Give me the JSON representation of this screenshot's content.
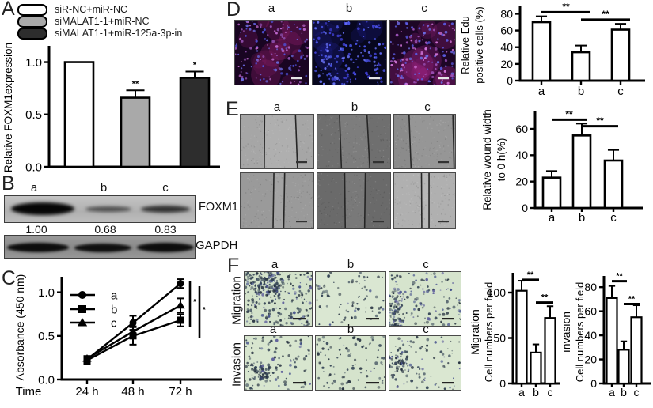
{
  "panels": {
    "A": {
      "letter": "A",
      "legend": [
        {
          "label": "siR-NC+miR-NC",
          "fill": "#ffffff"
        },
        {
          "label": "siMALAT1-1+miR-NC",
          "fill": "#a9a9a9"
        },
        {
          "label": "siMALAT1-1+miR-125a-3p-in",
          "fill": "#2d2d2d"
        }
      ]
    },
    "B": {
      "letter": "B",
      "lane_labels": [
        "a",
        "b",
        "c"
      ],
      "band_values": [
        "1.00",
        "0.68",
        "0.83"
      ],
      "protein_labels": [
        "FOXM1",
        "GAPDH"
      ]
    },
    "C": {
      "letter": "C"
    },
    "D": {
      "letter": "D",
      "column_labels": [
        "a",
        "b",
        "c"
      ]
    },
    "E": {
      "letter": "E",
      "column_labels": [
        "a",
        "b",
        "c"
      ]
    },
    "F": {
      "letter": "F",
      "row_labels": [
        "Migration",
        "Invasion"
      ],
      "column_labels_migration": [
        "a",
        "b",
        "c"
      ],
      "column_labels_invasion": [
        "a",
        "b",
        "c"
      ]
    }
  },
  "chart_data": [
    {
      "id": "A",
      "type": "bar",
      "categories": [
        "siR-NC+miR-NC",
        "siMALAT1-1+miR-NC",
        "siMALAT1-1+miR-125a-3p-in"
      ],
      "values": [
        1.0,
        0.66,
        0.85
      ],
      "errors": [
        0,
        0.07,
        0.06
      ],
      "bar_colors": [
        "#ffffff",
        "#a9a9a9",
        "#2d2d2d"
      ],
      "ylabel": "Relative FOXM1expression",
      "yticks": [
        0,
        0.5,
        1.0
      ],
      "ytick_labels": [
        "0.0",
        "0.5",
        "1.0"
      ],
      "ylim": [
        0,
        1.14
      ],
      "sig_above": [
        "",
        "**",
        "*"
      ],
      "xtick_labels": []
    },
    {
      "id": "C",
      "type": "line",
      "xlabel": "Time",
      "xtick_labels": [
        "24 h",
        "48 h",
        "72 h"
      ],
      "ylabel": "Absorbance (450 nm)",
      "yticks": [
        0,
        0.5,
        1.0
      ],
      "ytick_labels": [
        "0.0",
        "0.5",
        "1.0"
      ],
      "ylim": [
        0,
        1.16
      ],
      "series": [
        {
          "name": "a",
          "marker": "circle",
          "values": [
            0.23,
            0.65,
            1.1
          ],
          "errors": [
            0.03,
            0.08,
            0.05
          ]
        },
        {
          "name": "b",
          "marker": "square",
          "values": [
            0.22,
            0.5,
            0.68
          ],
          "errors": [
            0.04,
            0.1,
            0.07
          ]
        },
        {
          "name": "c",
          "marker": "triangle",
          "values": [
            0.24,
            0.55,
            0.85
          ],
          "errors": [
            0.03,
            0.06,
            0.08
          ]
        }
      ],
      "sig": [
        "*",
        "*"
      ],
      "legend_position": "upper-left"
    },
    {
      "id": "D",
      "type": "bar",
      "categories": [
        "a",
        "b",
        "c"
      ],
      "values": [
        70,
        34,
        61
      ],
      "errors": [
        7,
        8,
        7
      ],
      "bar_colors": [
        "#ffffff",
        "#ffffff",
        "#ffffff"
      ],
      "ylabel_lines": [
        "Relative Edu",
        "positive cells (%)"
      ],
      "yticks": [
        0,
        20,
        40,
        60,
        80
      ],
      "ytick_labels": [
        "0",
        "20",
        "40",
        "60",
        "80"
      ],
      "ylim": [
        0,
        88
      ],
      "sig_pairs": [
        {
          "from": 0,
          "to": 1,
          "level": 82,
          "text": "**"
        },
        {
          "from": 1,
          "to": 2,
          "level": 73,
          "text": "**"
        }
      ]
    },
    {
      "id": "E",
      "type": "bar",
      "categories": [
        "a",
        "b",
        "c"
      ],
      "values": [
        23,
        55,
        36
      ],
      "errors": [
        5,
        9,
        8
      ],
      "bar_colors": [
        "#ffffff",
        "#ffffff",
        "#ffffff"
      ],
      "ylabel_lines": [
        "Relative wound width",
        "to 0 h(%)"
      ],
      "yticks": [
        0,
        20,
        40,
        60
      ],
      "ytick_labels": [
        "0",
        "20",
        "40",
        "60"
      ],
      "ylim": [
        0,
        72
      ],
      "sig_pairs": [
        {
          "from": 0,
          "to": 1,
          "level": 67,
          "text": "**"
        },
        {
          "from": 1,
          "to": 2,
          "level": 62,
          "text": "**"
        }
      ]
    },
    {
      "id": "Fmig",
      "type": "bar",
      "categories": [
        "a",
        "b",
        "c"
      ],
      "values": [
        102,
        34,
        72
      ],
      "errors": [
        11,
        9,
        13
      ],
      "bar_colors": [
        "#ffffff",
        "#ffffff",
        "#ffffff"
      ],
      "ylabel_lines": [
        "Migration",
        "Cell numbers per field"
      ],
      "yticks": [
        0,
        50,
        100
      ],
      "ytick_labels": [
        "0",
        "50",
        "100"
      ],
      "ylim": [
        0,
        120
      ],
      "sig_pairs": [
        {
          "from": 0,
          "to": 1,
          "level": 114,
          "text": "**"
        },
        {
          "from": 1,
          "to": 2,
          "level": 89,
          "text": "**"
        }
      ]
    },
    {
      "id": "Finv",
      "type": "bar",
      "categories": [
        "a",
        "b",
        "c"
      ],
      "values": [
        71,
        28,
        55
      ],
      "errors": [
        10,
        7,
        10
      ],
      "bar_colors": [
        "#ffffff",
        "#ffffff",
        "#ffffff"
      ],
      "ylabel_lines": [
        "Invasion",
        "Cell numbers per field"
      ],
      "yticks": [
        0,
        20,
        40,
        60,
        80
      ],
      "ytick_labels": [
        "0",
        "20",
        "40",
        "60",
        "80"
      ],
      "ylim": [
        0,
        88
      ],
      "sig_pairs": [
        {
          "from": 0,
          "to": 1,
          "level": 85,
          "text": "**"
        },
        {
          "from": 1,
          "to": 2,
          "level": 66,
          "text": "**"
        }
      ]
    }
  ]
}
